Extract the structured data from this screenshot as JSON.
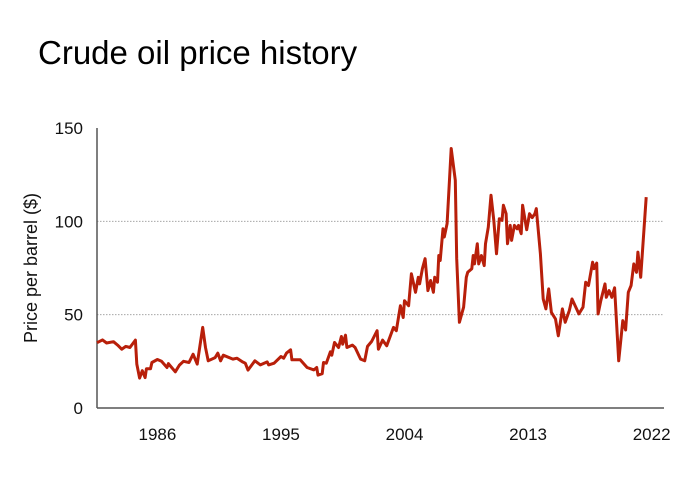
{
  "chart_data": {
    "type": "line",
    "title": "Crude oil price history",
    "xlabel": "",
    "ylabel": "Price per barrel ($)",
    "ylim": [
      0,
      150
    ],
    "xlim": [
      1981.6,
      2022.9
    ],
    "yticks": [
      0,
      50,
      100,
      150
    ],
    "xticks": [
      1986,
      1995,
      2004,
      2013,
      2022
    ],
    "grid": "horizontal dotted at 50 and 100",
    "color": "#b81f0a",
    "series": [
      {
        "name": "Crude oil price",
        "x": [
          1981.6,
          1982.0,
          1982.3,
          1982.8,
          1983.1,
          1983.4,
          1983.7,
          1984.0,
          1984.4,
          1984.5,
          1984.7,
          1984.9,
          1985.1,
          1985.2,
          1985.5,
          1985.6,
          1986.0,
          1986.3,
          1986.7,
          1986.8,
          1987.3,
          1987.6,
          1987.9,
          1988.3,
          1988.6,
          1988.9,
          1989.3,
          1989.5,
          1989.7,
          1990.2,
          1990.4,
          1990.6,
          1990.8,
          1991.5,
          1991.8,
          1992.2,
          1992.4,
          1992.6,
          1993.1,
          1993.5,
          1994.0,
          1994.1,
          1994.5,
          1995.0,
          1995.2,
          1995.4,
          1995.7,
          1995.8,
          1996.4,
          1996.9,
          1997.4,
          1997.6,
          1997.7,
          1998.0,
          1998.1,
          1998.3,
          1998.6,
          1998.7,
          1998.9,
          1999.2,
          1999.4,
          1999.5,
          1999.7,
          1999.8,
          2000.2,
          2000.4,
          2000.8,
          2001.1,
          2001.3,
          2001.6,
          2002.0,
          2002.1,
          2002.4,
          2002.7,
          2003.2,
          2003.4,
          2003.7,
          2003.9,
          2004.0,
          2004.3,
          2004.5,
          2004.8,
          2005.0,
          2005.1,
          2005.3,
          2005.5,
          2005.7,
          2005.9,
          2006.1,
          2006.2,
          2006.4,
          2006.5,
          2006.6,
          2006.8,
          2006.9,
          2007.1,
          2007.4,
          2007.7,
          2007.8,
          2008.0,
          2008.3,
          2008.5,
          2008.6,
          2008.9,
          2009.0,
          2009.1,
          2009.3,
          2009.4,
          2009.6,
          2009.8,
          2009.9,
          2010.1,
          2010.3,
          2010.5,
          2010.7,
          2010.9,
          2011.1,
          2011.2,
          2011.4,
          2011.5,
          2011.7,
          2011.8,
          2012.0,
          2012.2,
          2012.3,
          2012.5,
          2012.6,
          2012.9,
          2013.1,
          2013.3,
          2013.5,
          2013.6,
          2013.9,
          2014.1,
          2014.3,
          2014.5,
          2014.7,
          2015.0,
          2015.2,
          2015.5,
          2015.7,
          2016.0,
          2016.2,
          2016.7,
          2017.0,
          2017.2,
          2017.4,
          2017.7,
          2017.8,
          2018.0,
          2018.1,
          2018.3,
          2018.6,
          2018.7,
          2018.9,
          2019.1,
          2019.3,
          2019.6,
          2019.9,
          2020.1,
          2020.3,
          2020.5,
          2020.7,
          2020.9,
          2021.0,
          2021.2,
          2021.6
        ],
        "values": [
          35,
          36.5,
          34.8,
          35.5,
          33.7,
          31.5,
          33,
          32.4,
          36.4,
          23.5,
          16,
          20,
          16.3,
          21,
          21,
          24.4,
          26,
          25,
          21.7,
          23.8,
          19.4,
          23,
          25,
          24.4,
          28.8,
          23.5,
          43.2,
          32.4,
          25.3,
          27,
          29.4,
          25.3,
          28.3,
          26.2,
          26.7,
          24.7,
          24,
          20.3,
          25.3,
          23.1,
          24.7,
          23.1,
          24,
          27.6,
          26.7,
          29.4,
          31.2,
          25.8,
          25.8,
          21.7,
          20.4,
          21.7,
          17.6,
          18.4,
          24.4,
          24,
          30.1,
          28.3,
          35.1,
          32.4,
          38.3,
          34.2,
          39,
          32.4,
          33.7,
          32.4,
          26.2,
          25.3,
          33,
          35.6,
          41.4,
          31.5,
          36.4,
          33.3,
          43.2,
          41.4,
          54.8,
          48.5,
          57.5,
          54.8,
          71.9,
          62,
          70,
          66.5,
          74.6,
          80,
          62.9,
          68.3,
          62,
          70,
          67.4,
          81.7,
          79,
          96,
          91.6,
          98.8,
          139,
          122,
          80,
          45.9,
          54,
          70,
          72.7,
          74.6,
          81.7,
          77.2,
          88,
          77.2,
          81.7,
          76.3,
          88,
          96.9,
          114,
          100.5,
          82.6,
          101.4,
          100.5,
          108.6,
          104.1,
          88,
          97.8,
          89.8,
          97.8,
          96,
          97.8,
          93.4,
          108.6,
          95.5,
          104.1,
          102,
          104.1,
          106.8,
          82.6,
          58.4,
          53.1,
          63.8,
          51.2,
          47.7,
          38.7,
          53.1,
          45.9,
          52.2,
          58.4,
          50.4,
          54,
          67.4,
          65.6,
          78.1,
          74.6,
          77.6,
          50.4,
          57.5,
          66.5,
          59.3,
          62.9,
          59.3,
          64.4,
          25.3,
          46.8,
          41.8,
          62,
          65.6,
          77.2,
          72.7,
          83.5,
          70,
          113
        ]
      }
    ]
  }
}
